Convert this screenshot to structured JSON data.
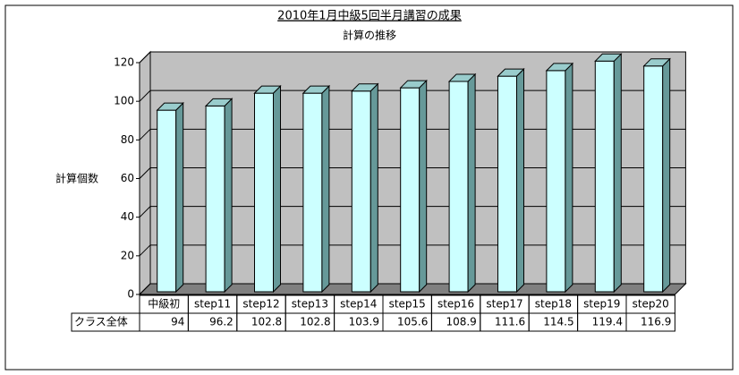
{
  "chart_data": {
    "type": "bar3d",
    "title": "2010年1月中級5回半月講習の成果",
    "subtitle": "計算の推移",
    "y_label": "計算個数",
    "categories": [
      "中級初",
      "step11",
      "step12",
      "step13",
      "step14",
      "step15",
      "step16",
      "step17",
      "step18",
      "step19",
      "step20"
    ],
    "series": [
      {
        "name": "クラス全体",
        "color": "#ccffff",
        "values": [
          94,
          96.2,
          102.8,
          102.8,
          103.9,
          105.6,
          108.9,
          111.6,
          114.5,
          119.4,
          116.9
        ]
      }
    ],
    "ylim": [
      0,
      120
    ],
    "yticks": [
      0,
      20,
      40,
      60,
      80,
      100,
      120
    ],
    "grid": true
  }
}
